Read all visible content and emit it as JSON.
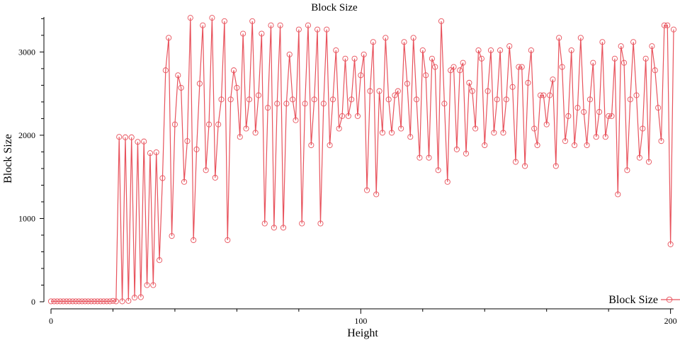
{
  "chart_data": {
    "type": "line",
    "title": "Block Size",
    "xlabel": "Height",
    "ylabel": "Block Size",
    "xlim": [
      0,
      201
    ],
    "ylim": [
      0,
      3420
    ],
    "x_ticks": [
      0,
      100,
      200
    ],
    "x_tick_labels": [
      "0",
      "100",
      "200"
    ],
    "y_ticks": [
      0,
      1000,
      2000,
      3000
    ],
    "y_tick_labels": [
      "0",
      "1000",
      "2000",
      "3000"
    ],
    "grid": false,
    "legend_position": "bottom-right",
    "series": [
      {
        "name": "Block Size",
        "color": "#e8525c",
        "marker": "open-circle",
        "values": [
          5,
          5,
          5,
          5,
          5,
          5,
          5,
          5,
          5,
          5,
          5,
          5,
          5,
          5,
          5,
          5,
          5,
          5,
          5,
          5,
          10,
          5,
          1980,
          5,
          1975,
          10,
          1975,
          50,
          1920,
          55,
          1925,
          200,
          1785,
          200,
          1795,
          500,
          1485,
          2780,
          3170,
          790,
          2130,
          2720,
          2570,
          1440,
          1930,
          3410,
          740,
          1830,
          2620,
          3320,
          1580,
          2130,
          3410,
          1490,
          2130,
          2430,
          3370,
          740,
          2430,
          2780,
          2570,
          1980,
          3220,
          2080,
          2430,
          3370,
          2030,
          2480,
          3220,
          940,
          2330,
          3320,
          890,
          2380,
          3320,
          890,
          2380,
          2970,
          2430,
          2180,
          3270,
          940,
          2380,
          3320,
          1880,
          2430,
          3270,
          940,
          2380,
          3270,
          1880,
          2430,
          3020,
          2080,
          2230,
          2920,
          2230,
          2430,
          2920,
          2230,
          2720,
          2970,
          1340,
          2530,
          3120,
          1290,
          2530,
          2030,
          3170,
          2430,
          2030,
          2480,
          2530,
          2080,
          3120,
          2620,
          1980,
          3170,
          2430,
          1730,
          3020,
          2720,
          1730,
          2920,
          2820,
          1580,
          3370,
          2380,
          1440,
          2780,
          2820,
          1830,
          2780,
          2870,
          1780,
          2630,
          2530,
          2080,
          3020,
          2920,
          1880,
          2530,
          3020,
          2030,
          2430,
          3020,
          2030,
          2430,
          3070,
          2580,
          1680,
          2820,
          2820,
          1630,
          2630,
          3020,
          2080,
          1880,
          2480,
          2480,
          2130,
          2480,
          2670,
          1630,
          3170,
          2820,
          1930,
          2230,
          3020,
          1880,
          2330,
          3170,
          2280,
          1880,
          2430,
          2870,
          1980,
          2280,
          3120,
          1980,
          2230,
          2230,
          2920,
          1290,
          3070,
          2870,
          1580,
          2430,
          3120,
          2480,
          1730,
          2080,
          2920,
          1680,
          3070,
          2780,
          2330,
          1930,
          3320,
          3320,
          690,
          3270
        ]
      }
    ]
  }
}
